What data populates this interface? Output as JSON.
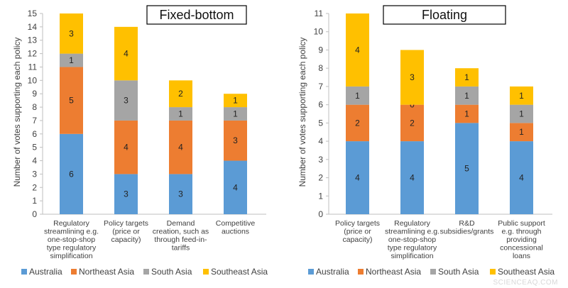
{
  "chart_data": [
    {
      "type": "bar",
      "stacked": true,
      "title": "Fixed-bottom",
      "ylabel": "Number of votes supporting each policy",
      "ylim": [
        0,
        15
      ],
      "yticks": [
        0,
        1,
        2,
        3,
        4,
        5,
        6,
        7,
        8,
        9,
        10,
        11,
        12,
        13,
        14,
        15
      ],
      "categories": [
        [
          "Regulatory",
          "streamlining e.g.",
          "one-stop-shop",
          "type regulatory",
          "simplification"
        ],
        [
          "Policy targets",
          "(price or",
          "capacity)"
        ],
        [
          "Demand",
          "creation, such as",
          "through feed-in-",
          "tariffs"
        ],
        [
          "Competitive",
          "auctions"
        ]
      ],
      "series": [
        {
          "name": "Australia",
          "values": [
            6,
            3,
            3,
            4
          ],
          "labels": [
            "6",
            "3",
            "3",
            "4"
          ]
        },
        {
          "name": "Northeast Asia",
          "values": [
            5,
            4,
            4,
            3
          ],
          "labels": [
            "5",
            "4",
            "4",
            "3"
          ]
        },
        {
          "name": "South Asia",
          "values": [
            1,
            3,
            1,
            1
          ],
          "labels": [
            "1",
            "3",
            "1",
            "1"
          ]
        },
        {
          "name": "Southeast Asia",
          "values": [
            3,
            4,
            2,
            1
          ],
          "labels": [
            "3",
            "4",
            "2",
            "1"
          ]
        }
      ],
      "legend": "bottom",
      "grid": false
    },
    {
      "type": "bar",
      "stacked": true,
      "title": "Floating",
      "ylabel": "Number of votes supporting each policy",
      "ylim": [
        0,
        11
      ],
      "yticks": [
        0,
        1,
        2,
        3,
        4,
        5,
        6,
        7,
        8,
        9,
        10,
        11
      ],
      "categories": [
        [
          "Policy targets",
          "(price or",
          "capacity)"
        ],
        [
          "Regulatory",
          "streamlining e.g.",
          "one-stop-shop",
          "type regulatory",
          "simplification"
        ],
        [
          "R&D",
          "subsidies/grants"
        ],
        [
          "Public support",
          "e.g. through",
          "providing",
          "concessional",
          "loans"
        ]
      ],
      "series": [
        {
          "name": "Australia",
          "values": [
            4,
            4,
            5,
            4
          ],
          "labels": [
            "4",
            "4",
            "5",
            "4"
          ]
        },
        {
          "name": "Northeast Asia",
          "values": [
            2,
            2,
            1,
            1
          ],
          "labels": [
            "2",
            "2",
            "1",
            "1"
          ]
        },
        {
          "name": "South Asia",
          "values": [
            1,
            0,
            1,
            1
          ],
          "labels": [
            "1",
            "0",
            "1",
            "1"
          ]
        },
        {
          "name": "Southeast Asia",
          "values": [
            4,
            3,
            1,
            1
          ],
          "labels": [
            "4",
            "3",
            "1",
            "1"
          ]
        }
      ],
      "legend": "bottom",
      "grid": false
    }
  ],
  "colors": {
    "Australia": "#5b9bd5",
    "Northeast Asia": "#ed7d31",
    "South Asia": "#a5a5a5",
    "Southeast Asia": "#ffc000"
  },
  "watermark": "SCIENCEAQ.COM"
}
